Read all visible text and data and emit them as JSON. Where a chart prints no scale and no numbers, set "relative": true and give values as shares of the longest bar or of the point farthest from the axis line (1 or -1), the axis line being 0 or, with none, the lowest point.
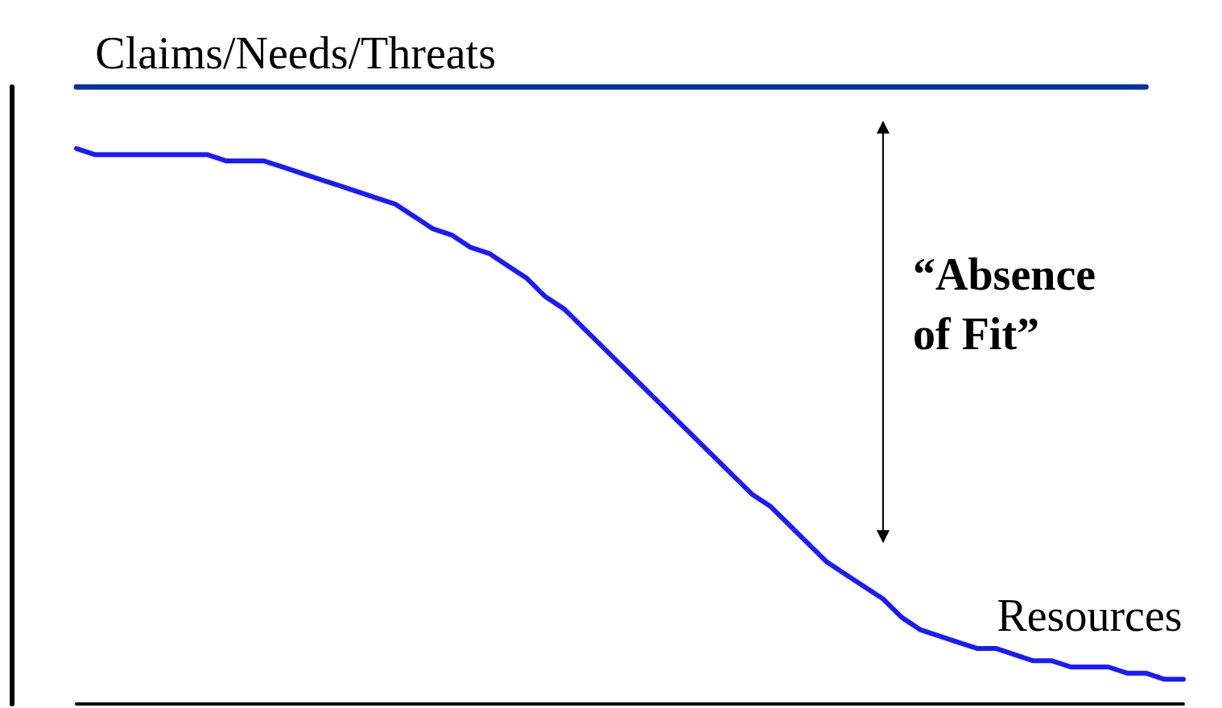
{
  "chart_data": {
    "type": "line",
    "relative": true,
    "categories": [
      null,
      null,
      null,
      null,
      null,
      null,
      null,
      null,
      null,
      null,
      null,
      null,
      null,
      null,
      null,
      null,
      null,
      null,
      null,
      null,
      null,
      null,
      null,
      null,
      null,
      null,
      null,
      null,
      null,
      null,
      null,
      null,
      null,
      null,
      null,
      null,
      null,
      null,
      null,
      null,
      null,
      null,
      null,
      null,
      null,
      null,
      null,
      null,
      null,
      null,
      null,
      null,
      null,
      null,
      null,
      null,
      null,
      null,
      null,
      null
    ],
    "series": [
      {
        "name": "Claims/Needs/Threats",
        "color": "#0033a0",
        "values": [
          1,
          1,
          1,
          1,
          1,
          1,
          1,
          1,
          1,
          1,
          1,
          1,
          1,
          1,
          1,
          1,
          1,
          1,
          1,
          1,
          1,
          1,
          1,
          1,
          1,
          1,
          1,
          1,
          1,
          1,
          1,
          1,
          1,
          1,
          1,
          1,
          1,
          1,
          1,
          1,
          1,
          1,
          1,
          1,
          1,
          1,
          1,
          1,
          1,
          1,
          1,
          1,
          1,
          1,
          1,
          1,
          1,
          1,
          null,
          null
        ]
      },
      {
        "name": "Resources",
        "color": "#1a1aff",
        "values": [
          0.9,
          0.89,
          0.89,
          0.89,
          0.89,
          0.89,
          0.89,
          0.89,
          0.88,
          0.88,
          0.88,
          0.87,
          0.86,
          0.85,
          0.84,
          0.83,
          0.82,
          0.81,
          0.79,
          0.77,
          0.76,
          0.74,
          0.73,
          0.71,
          0.69,
          0.66,
          0.64,
          0.61,
          0.58,
          0.55,
          0.52,
          0.49,
          0.46,
          0.43,
          0.4,
          0.37,
          0.34,
          0.32,
          0.29,
          0.26,
          0.23,
          0.21,
          0.19,
          0.17,
          0.14,
          0.12,
          0.11,
          0.1,
          0.09,
          0.09,
          0.08,
          0.07,
          0.07,
          0.06,
          0.06,
          0.06,
          0.05,
          0.05,
          0.04,
          0.04
        ]
      }
    ],
    "annotations": [
      "“Absence of Fit”"
    ],
    "grid": false,
    "legend": false,
    "marker": "none",
    "line_style": "solid"
  }
}
